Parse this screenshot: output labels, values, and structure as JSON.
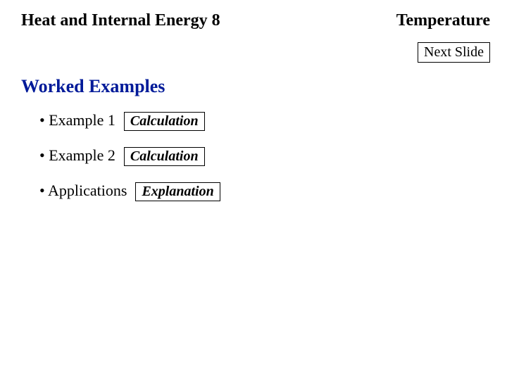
{
  "header": {
    "left": "Heat and Internal Energy  8",
    "right": "Temperature"
  },
  "next_button": {
    "label": "Next Slide"
  },
  "section": {
    "title": "Worked Examples",
    "title_color": "#001a99"
  },
  "items": [
    {
      "bullet": "•",
      "label": "Example 1",
      "button": "Calculation"
    },
    {
      "bullet": "•",
      "label": "Example 2",
      "button": "Calculation"
    },
    {
      "bullet": "•",
      "label": "Applications",
      "button": "Explanation"
    }
  ],
  "colors": {
    "background": "#ffffff",
    "text": "#000000",
    "border": "#000000"
  }
}
